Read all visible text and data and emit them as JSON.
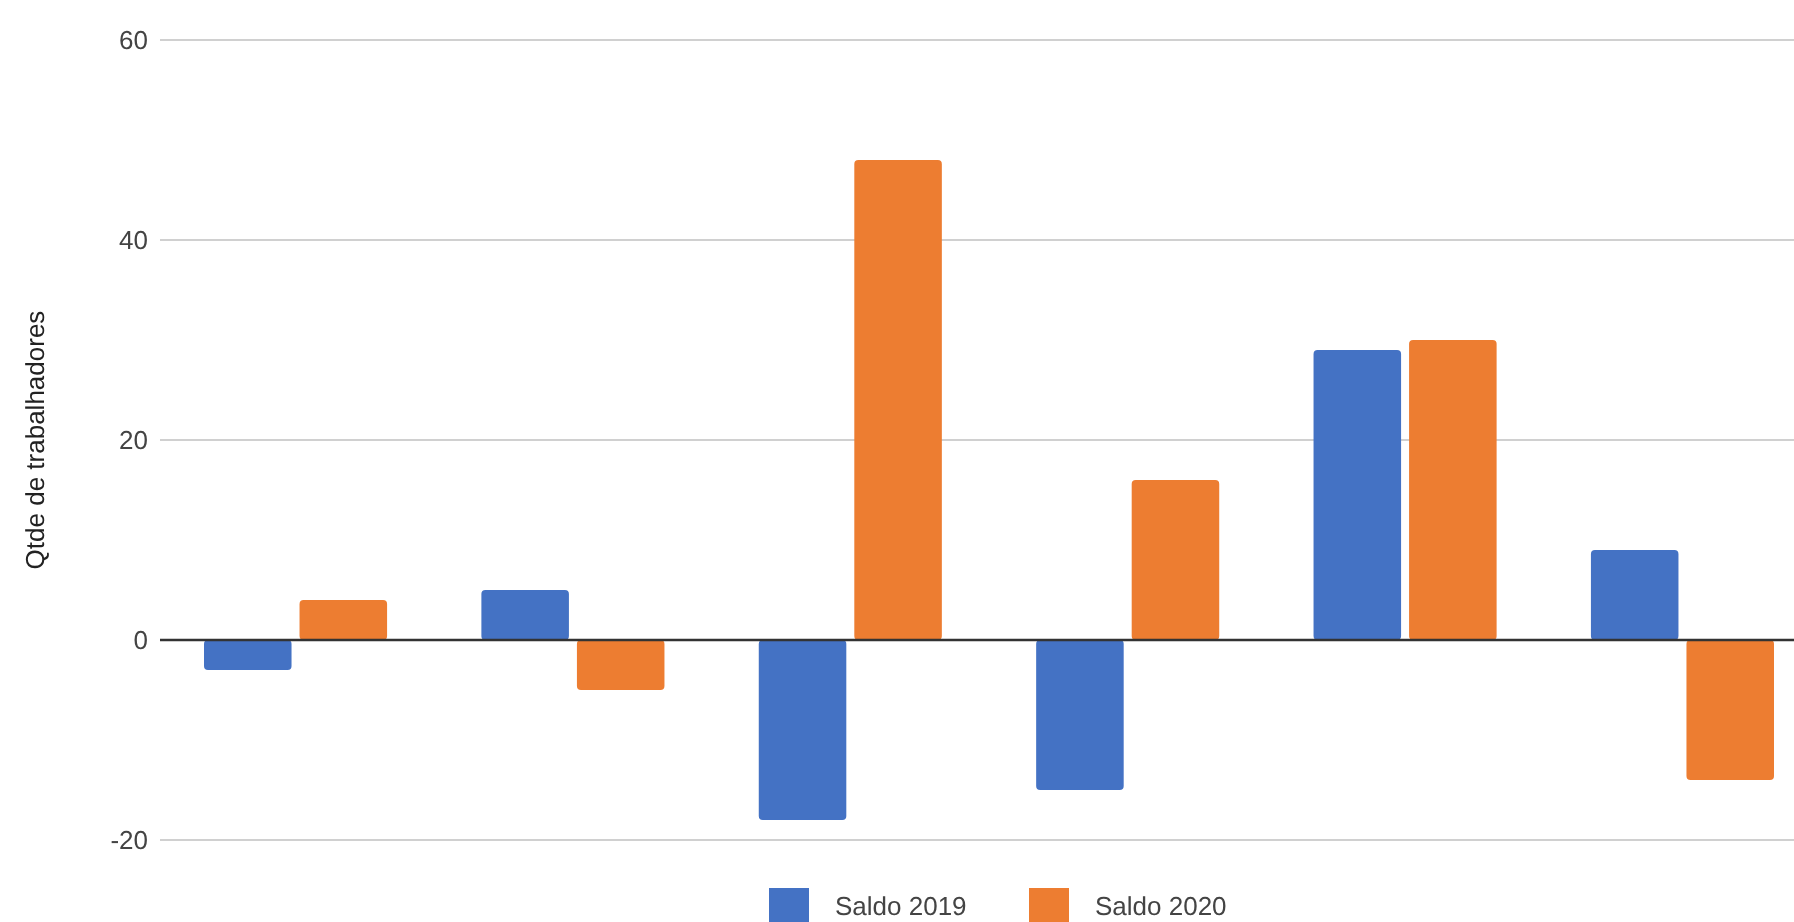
{
  "chart_data": {
    "type": "bar",
    "ylabel": "Qtde de trabalhadores",
    "categories": [
      null,
      null,
      null,
      null,
      null,
      null
    ],
    "series": [
      {
        "name": "Saldo 2019",
        "color": "#4472c4",
        "values": [
          -3,
          5,
          -18,
          -15,
          29,
          9
        ]
      },
      {
        "name": "Saldo 2020",
        "color": "#ed7d31",
        "values": [
          4,
          -5,
          48,
          16,
          30,
          -14
        ]
      }
    ],
    "ylim": [
      -20,
      60
    ],
    "yticks": [
      -20,
      0,
      20,
      40,
      60
    ],
    "grid": "y",
    "legend": "bottom"
  }
}
